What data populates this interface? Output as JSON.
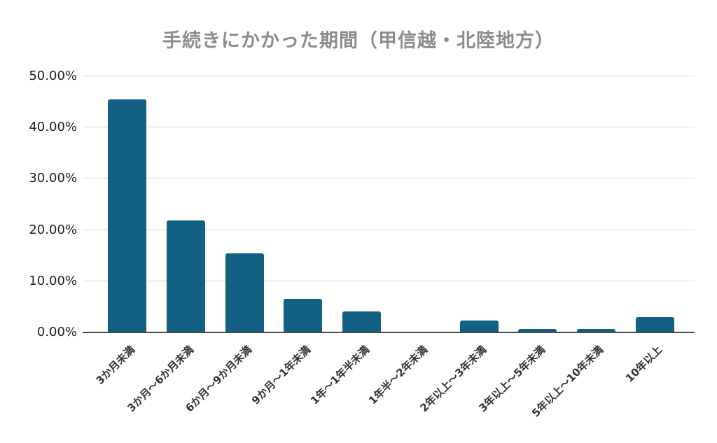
{
  "chart_data": {
    "type": "bar",
    "title": "手続きにかかった期間（甲信越・北陸地方）",
    "categories": [
      "3か月未満",
      "3か月～6か月未満",
      "6か月～9か月未満",
      "9か月～1年未満",
      "1年～1年半未満",
      "1年半～2年未満",
      "2年以上～3年未満",
      "3年以上～5年未満",
      "5年以上～10年未満",
      "10年以上"
    ],
    "values": [
      45.45,
      21.82,
      15.45,
      6.59,
      4.09,
      0.0,
      2.27,
      0.68,
      0.68,
      2.95
    ],
    "xlabel": "",
    "ylabel": "",
    "ylim": [
      0,
      50
    ],
    "y_tick_step": 10,
    "y_tick_labels": [
      "0.00%",
      "10.00%",
      "20.00%",
      "30.00%",
      "40.00%",
      "50.00%"
    ],
    "grid": true,
    "legend_position": "none",
    "colors": {
      "bar": "#126185",
      "title": "#8c8c8c",
      "gridline": "#d9d9d9",
      "axis_line": "#4a4a4a",
      "tick_text": "#1f1f1f",
      "x_label_text": "#333333",
      "background": "#ffffff"
    }
  }
}
